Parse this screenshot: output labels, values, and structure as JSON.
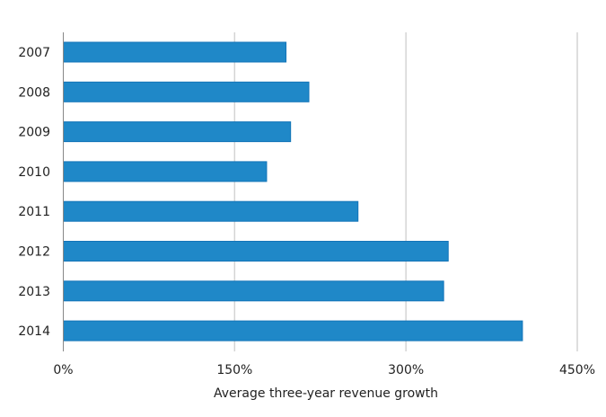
{
  "chart_data": {
    "type": "bar",
    "orientation": "horizontal",
    "title": "",
    "categories": [
      "2007",
      "2008",
      "2009",
      "2010",
      "2011",
      "2012",
      "2013",
      "2014"
    ],
    "values": [
      195,
      215,
      199,
      178,
      258,
      337,
      333,
      402
    ],
    "value_unit": "%",
    "xlabel": "Average three-year revenue growth",
    "ylabel": "",
    "xlim": [
      0,
      450
    ],
    "x_ticks": [
      0,
      150,
      300,
      450
    ],
    "x_tick_labels": [
      "0%",
      "150%",
      "300%",
      "450%"
    ],
    "grid": true,
    "legend": "none",
    "colors": {
      "bar": "#1f88c8",
      "bar_border": "#1374b8",
      "grid": "#d4d4d4",
      "axis": "#888888"
    }
  }
}
